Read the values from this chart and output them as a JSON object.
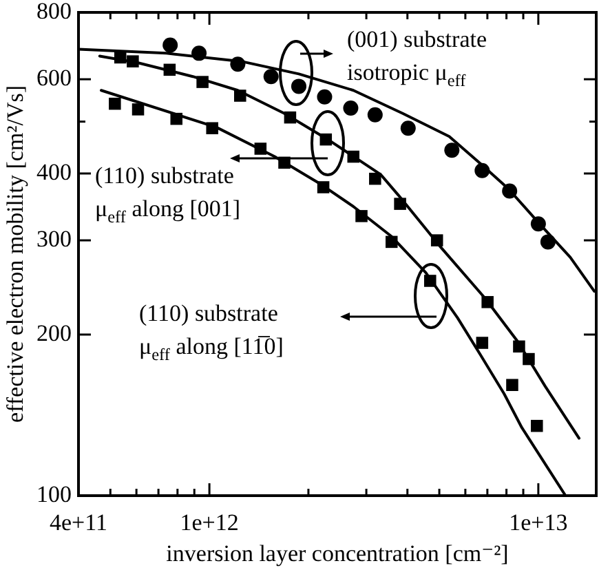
{
  "chart_data": {
    "type": "scatter",
    "xlabel": "inversion layer concentration [cm⁻²]",
    "ylabel": "effective electron mobility [cm²/Vs]",
    "log": "xy",
    "xlim": [
      400000000000.0,
      15000000000000.0
    ],
    "xticks": [
      {
        "value": 400000000000.0,
        "label": "4e+11"
      },
      {
        "value": 500000000000.0,
        "label": null
      },
      {
        "value": 600000000000.0,
        "label": null
      },
      {
        "value": 700000000000.0,
        "label": null
      },
      {
        "value": 800000000000.0,
        "label": null
      },
      {
        "value": 900000000000.0,
        "label": null
      },
      {
        "value": 1000000000000.0,
        "label": "1e+12"
      },
      {
        "value": 2000000000000.0,
        "label": null
      },
      {
        "value": 3000000000000.0,
        "label": null
      },
      {
        "value": 4000000000000.0,
        "label": null
      },
      {
        "value": 5000000000000.0,
        "label": null
      },
      {
        "value": 6000000000000.0,
        "label": null
      },
      {
        "value": 7000000000000.0,
        "label": null
      },
      {
        "value": 8000000000000.0,
        "label": null
      },
      {
        "value": 9000000000000.0,
        "label": null
      },
      {
        "value": 10000000000000.0,
        "label": "1e+13"
      }
    ],
    "ylim": [
      100,
      800
    ],
    "yticks": [
      100,
      200,
      300,
      400,
      {
        "value": 500,
        "label": null
      },
      600,
      800
    ],
    "series": [
      {
        "marker": "circle",
        "color": "#000000",
        "x": [
          760000000000.0,
          930000000000.0,
          1220000000000.0,
          1540000000000.0,
          1870000000000.0,
          2240000000000.0,
          2690000000000.0,
          3190000000000.0,
          4020000000000.0,
          5460000000000.0,
          6750000000000.0,
          8180000000000.0,
          10000000000000.0,
          10700000000000.0
        ],
        "values": [
          695,
          671,
          640,
          607,
          582,
          556,
          530,
          515,
          486,
          442,
          405,
          371,
          322,
          298
        ]
      },
      {
        "type": "line",
        "color": "#000000",
        "x": [
          400000000000.0,
          740000000000.0,
          1250000000000.0,
          1870000000000.0,
          2740000000000.0,
          3870000000000.0,
          5360000000000.0,
          6680000000000.0,
          8090000000000.0,
          10000000000000.0,
          12500000000000.0,
          14800000000000.0
        ],
        "values": [
          683,
          671,
          648,
          614,
          572,
          518,
          469,
          417,
          375,
          324,
          279,
          241
        ]
      },
      {
        "marker": "square",
        "color": "#000000",
        "x": [
          536000000000.0,
          585000000000.0,
          757000000000.0,
          953000000000.0,
          1240000000000.0,
          1760000000000.0,
          2260000000000.0,
          2740000000000.0,
          3190000000000.0,
          3800000000000.0,
          4920000000000.0,
          7010000000000.0,
          8740000000000.0,
          9350000000000.0
        ],
        "values": [
          659,
          648,
          625,
          593,
          559,
          509,
          463,
          430,
          391,
          351,
          300,
          230,
          190,
          180
        ]
      },
      {
        "type": "line",
        "color": "#000000",
        "x": [
          464000000000.0,
          607000000000.0,
          891000000000.0,
          1220000000000.0,
          1690000000000.0,
          2330000000000.0,
          3320000000000.0,
          3760000000000.0,
          5010000000000.0,
          6880000000000.0,
          8660000000000.0,
          10500000000000.0,
          13300000000000.0
        ],
        "values": [
          663,
          644,
          607,
          572,
          518,
          460,
          398,
          364,
          293,
          234,
          194,
          160,
          128
        ]
      },
      {
        "marker": "square",
        "color": "#000000",
        "x": [
          516000000000.0,
          607000000000.0,
          794000000000.0,
          1020000000000.0,
          1430000000000.0,
          1690000000000.0,
          2220000000000.0,
          2900000000000.0,
          3580000000000.0,
          4690000000000.0,
          6750000000000.0,
          8330000000000.0,
          9900000000000.0
        ],
        "values": [
          540,
          527,
          506,
          486,
          445,
          419,
          377,
          333,
          298,
          252,
          193,
          161,
          135
        ]
      },
      {
        "type": "line",
        "color": "#000000",
        "x": [
          469000000000.0,
          1050000000000.0,
          1580000000000.0,
          2180000000000.0,
          2740000000000.0,
          3580000000000.0,
          4550000000000.0,
          5680000000000.0,
          6680000000000.0,
          7870000000000.0,
          8910000000000.0,
          12100000000000.0
        ],
        "values": [
          572,
          488,
          430,
          382,
          347,
          305,
          261,
          215,
          183,
          155,
          134,
          100
        ]
      }
    ],
    "annotations": [
      "(001) substrate\nisotropic μ$_{eff}$",
      "(110) substrate\nμ$_{eff}$ along [001]",
      "(110) substrate\nμ$_{eff}$ along [11̅0]"
    ]
  }
}
